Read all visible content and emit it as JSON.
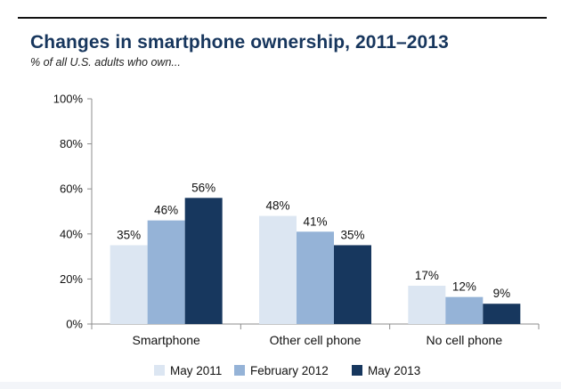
{
  "page": {
    "title": "Changes in smartphone ownership, 2011–2013",
    "subtitle": "% of all U.S. adults who own..."
  },
  "chart_data": {
    "type": "bar",
    "title": "Changes in smartphone ownership, 2011–2013",
    "subtitle": "% of all U.S. adults who own...",
    "categories": [
      "Smartphone",
      "Other cell phone",
      "No cell phone"
    ],
    "series": [
      {
        "name": "May 2011",
        "values": [
          35,
          48,
          17
        ],
        "color": "#dce6f2"
      },
      {
        "name": "February 2012",
        "values": [
          46,
          41,
          12
        ],
        "color": "#95b3d7"
      },
      {
        "name": "May 2013",
        "values": [
          56,
          35,
          9
        ],
        "color": "#17375e"
      }
    ],
    "value_labels": [
      [
        "35%",
        "48%",
        "17%"
      ],
      [
        "46%",
        "41%",
        "12%"
      ],
      [
        "56%",
        "35%",
        "9%"
      ]
    ],
    "yticks": [
      0,
      20,
      40,
      60,
      80,
      100
    ],
    "ytick_labels": [
      "0%",
      "20%",
      "40%",
      "60%",
      "80%",
      "100%"
    ],
    "ylim": [
      0,
      100
    ],
    "xlabel": "",
    "ylabel": "",
    "grid": false,
    "legend_position": "bottom"
  }
}
